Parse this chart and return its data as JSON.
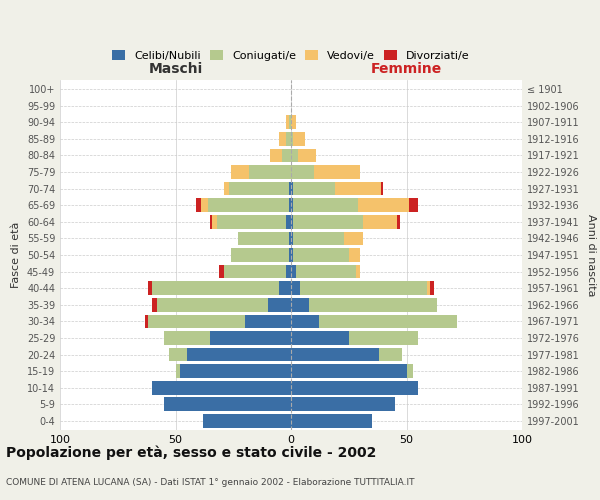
{
  "age_groups": [
    "0-4",
    "5-9",
    "10-14",
    "15-19",
    "20-24",
    "25-29",
    "30-34",
    "35-39",
    "40-44",
    "45-49",
    "50-54",
    "55-59",
    "60-64",
    "65-69",
    "70-74",
    "75-79",
    "80-84",
    "85-89",
    "90-94",
    "95-99",
    "100+"
  ],
  "birth_years": [
    "1997-2001",
    "1992-1996",
    "1987-1991",
    "1982-1986",
    "1977-1981",
    "1972-1976",
    "1967-1971",
    "1962-1966",
    "1957-1961",
    "1952-1956",
    "1947-1951",
    "1942-1946",
    "1937-1941",
    "1932-1936",
    "1927-1931",
    "1922-1926",
    "1917-1921",
    "1912-1916",
    "1907-1911",
    "1902-1906",
    "≤ 1901"
  ],
  "male": {
    "celibi": [
      38,
      55,
      60,
      48,
      45,
      35,
      20,
      10,
      5,
      2,
      1,
      1,
      2,
      1,
      1,
      0,
      0,
      0,
      0,
      0,
      0
    ],
    "coniugati": [
      0,
      0,
      0,
      2,
      8,
      20,
      42,
      48,
      55,
      27,
      25,
      22,
      30,
      35,
      26,
      18,
      4,
      2,
      1,
      0,
      0
    ],
    "vedovi": [
      0,
      0,
      0,
      0,
      0,
      0,
      0,
      0,
      0,
      0,
      0,
      0,
      2,
      3,
      2,
      8,
      5,
      3,
      1,
      0,
      0
    ],
    "divorziati": [
      0,
      0,
      0,
      0,
      0,
      0,
      1,
      2,
      2,
      2,
      0,
      0,
      1,
      2,
      0,
      0,
      0,
      0,
      0,
      0,
      0
    ]
  },
  "female": {
    "nubili": [
      35,
      45,
      55,
      50,
      38,
      25,
      12,
      8,
      4,
      2,
      1,
      1,
      1,
      1,
      1,
      0,
      0,
      0,
      0,
      0,
      0
    ],
    "coniugate": [
      0,
      0,
      0,
      3,
      10,
      30,
      60,
      55,
      55,
      26,
      24,
      22,
      30,
      28,
      18,
      10,
      3,
      1,
      0,
      0,
      0
    ],
    "vedove": [
      0,
      0,
      0,
      0,
      0,
      0,
      0,
      0,
      1,
      2,
      5,
      8,
      15,
      22,
      20,
      20,
      8,
      5,
      2,
      0,
      0
    ],
    "divorziate": [
      0,
      0,
      0,
      0,
      0,
      0,
      0,
      0,
      2,
      0,
      0,
      0,
      1,
      4,
      1,
      0,
      0,
      0,
      0,
      0,
      0
    ]
  },
  "colors": {
    "celibi": "#3A6EA5",
    "coniugati": "#B5C98E",
    "vedovi": "#F5C26B",
    "divorziati": "#CC2222"
  },
  "xlim": 100,
  "title": "Popolazione per età, sesso e stato civile - 2002",
  "subtitle": "COMUNE DI ATENA LUCANA (SA) - Dati ISTAT 1° gennaio 2002 - Elaborazione TUTTITALIA.IT",
  "xlabel_left": "Maschi",
  "xlabel_right": "Femmine",
  "ylabel_left": "Fasce di età",
  "ylabel_right": "Anni di nascita",
  "background_color": "#f0f0e8",
  "plot_bg": "#ffffff"
}
